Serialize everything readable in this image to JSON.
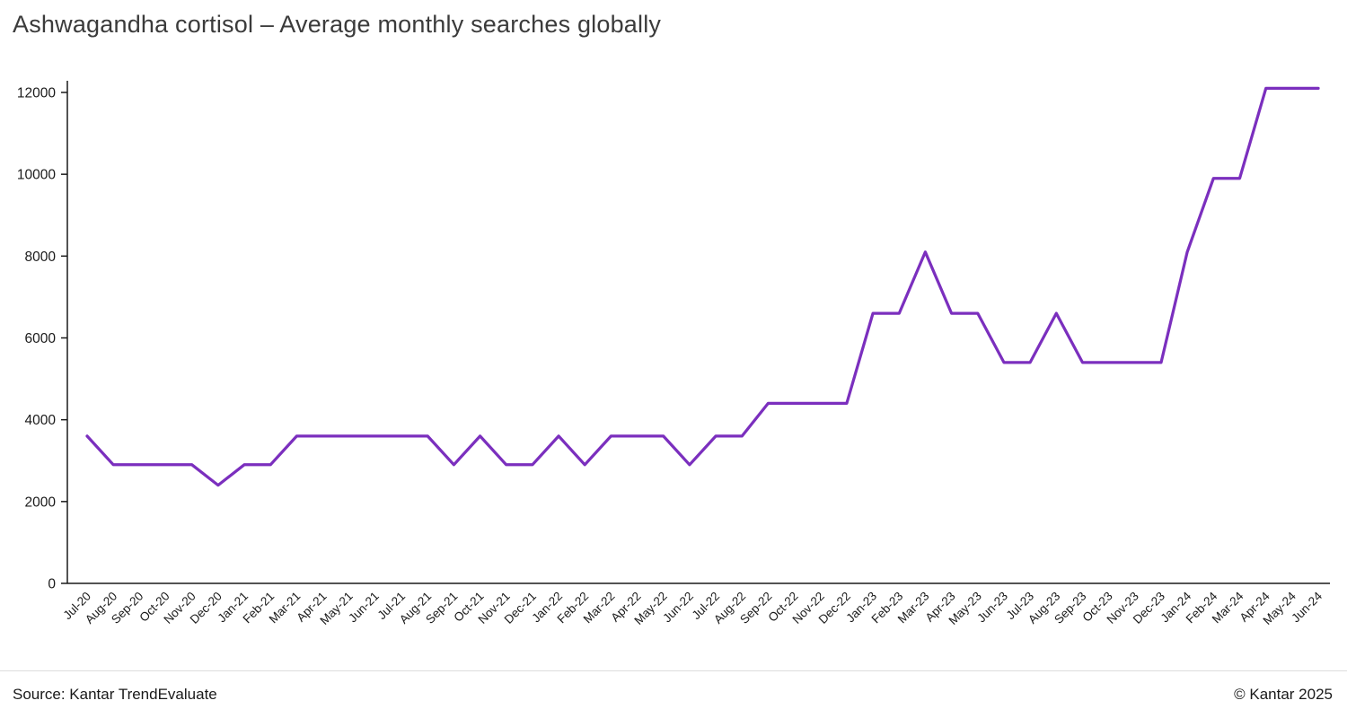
{
  "title": "Ashwagandha cortisol – Average monthly searches globally",
  "footer": {
    "source": "Source: Kantar TrendEvaluate",
    "copyright": "© Kantar 2025"
  },
  "colors": {
    "line": "#7B2FBE",
    "title_text": "#3B3B3B",
    "axis": "#1A1A1A",
    "tick_text": "#1A1A1A",
    "divider": "#DDDDDD"
  },
  "chart_data": {
    "type": "line",
    "title": "Ashwagandha cortisol – Average monthly searches globally",
    "xlabel": "",
    "ylabel": "",
    "ylim": [
      0,
      12000
    ],
    "yticks": [
      0,
      2000,
      4000,
      6000,
      8000,
      10000,
      12000
    ],
    "grid": false,
    "legend_position": "none",
    "x": [
      "Jul-20",
      "Aug-20",
      "Sep-20",
      "Oct-20",
      "Nov-20",
      "Dec-20",
      "Jan-21",
      "Feb-21",
      "Mar-21",
      "Apr-21",
      "May-21",
      "Jun-21",
      "Jul-21",
      "Aug-21",
      "Sep-21",
      "Oct-21",
      "Nov-21",
      "Dec-21",
      "Jan-22",
      "Feb-22",
      "Mar-22",
      "Apr-22",
      "May-22",
      "Jun-22",
      "Jul-22",
      "Aug-22",
      "Sep-22",
      "Oct-22",
      "Nov-22",
      "Dec-22",
      "Jan-23",
      "Feb-23",
      "Mar-23",
      "Apr-23",
      "May-23",
      "Jun-23",
      "Jul-23",
      "Aug-23",
      "Sep-23",
      "Oct-23",
      "Nov-23",
      "Dec-23",
      "Jan-24",
      "Feb-24",
      "Mar-24",
      "Apr-24",
      "May-24",
      "Jun-24"
    ],
    "series": [
      {
        "name": "Average monthly searches",
        "values": [
          3600,
          2900,
          2900,
          2900,
          2900,
          2400,
          2900,
          2900,
          3600,
          3600,
          3600,
          3600,
          3600,
          3600,
          2900,
          3600,
          2900,
          2900,
          3600,
          2900,
          3600,
          3600,
          3600,
          2900,
          3600,
          3600,
          4400,
          4400,
          4400,
          4400,
          6600,
          6600,
          8100,
          6600,
          6600,
          5400,
          5400,
          6600,
          5400,
          5400,
          5400,
          5400,
          8100,
          9900,
          9900,
          12100,
          12100,
          12100
        ]
      }
    ]
  }
}
